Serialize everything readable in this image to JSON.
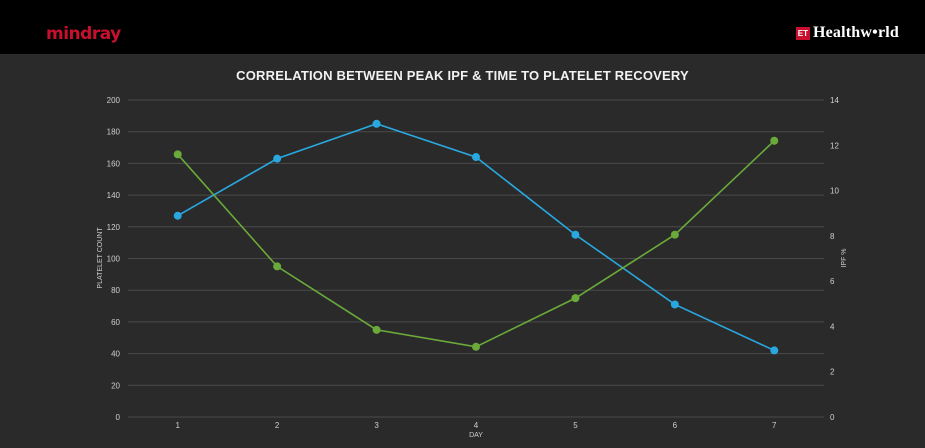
{
  "header": {
    "left_brand": "mindray",
    "right_badge": "ET",
    "right_brand": "Healthw•rld"
  },
  "chart_data": {
    "type": "line",
    "title": "CORRELATION BETWEEN PEAK IPF & TIME TO PLATELET RECOVERY",
    "xlabel": "DAY",
    "ylabel": "PLATELET COUNT",
    "y2label": "IPF %",
    "x": [
      1,
      2,
      3,
      4,
      5,
      6,
      7
    ],
    "ylim": [
      0,
      200
    ],
    "yticks": [
      0,
      20,
      40,
      60,
      80,
      100,
      120,
      140,
      160,
      180,
      200
    ],
    "y2lim": [
      0,
      14
    ],
    "y2ticks": [
      0,
      2,
      4,
      6,
      8,
      10,
      12,
      14
    ],
    "grid": true,
    "series": [
      {
        "axis": "left",
        "color": "#29a8e0",
        "values": [
          127,
          163,
          185,
          164,
          115,
          71,
          42
        ]
      },
      {
        "axis": "right",
        "color": "#6aaa3a",
        "values": [
          11.6,
          6.65,
          3.85,
          3.1,
          5.25,
          8.05,
          12.2
        ]
      }
    ],
    "colors": {
      "background": "#2a2a2a",
      "grid": "#4a4a4a",
      "text": "#cfcfcf"
    }
  }
}
